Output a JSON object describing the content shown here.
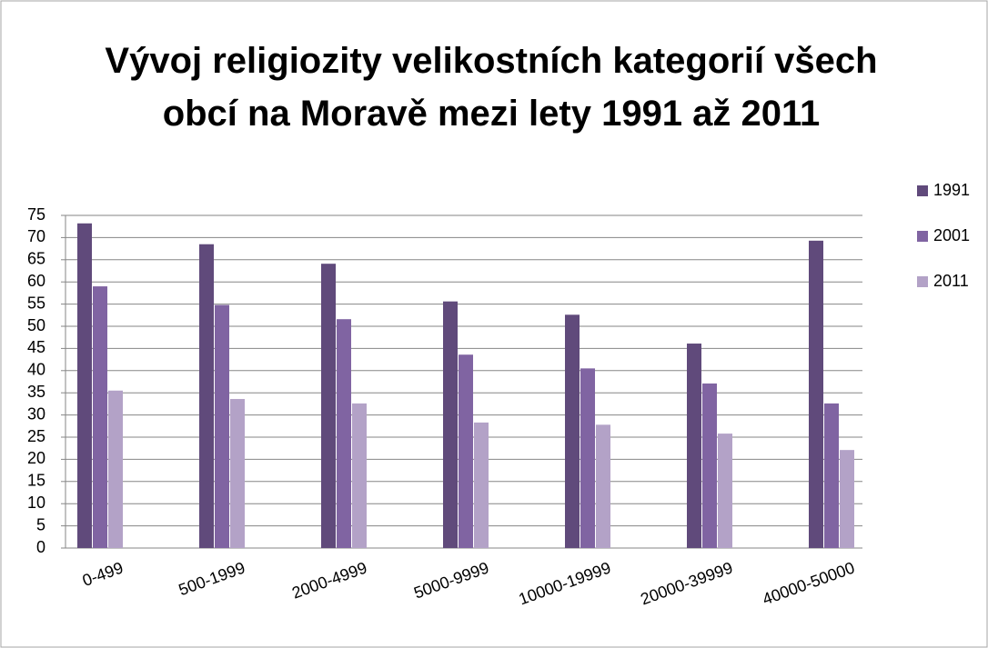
{
  "chart_data": {
    "type": "bar",
    "title": "Vývoj religiozity velikostních kategorií všech obcí na Moravě mezi lety 1991 až 2011",
    "categories": [
      "0-499",
      "500-1999",
      "2000-4999",
      "5000-9999",
      "10000-19999",
      "20000-39999",
      "40000-50000"
    ],
    "series": [
      {
        "name": "1991",
        "color": "#604a7b",
        "values": [
          73.2,
          68.5,
          64.1,
          55.6,
          52.6,
          46.1,
          69.3
        ]
      },
      {
        "name": "2001",
        "color": "#8064a2",
        "values": [
          59,
          54.8,
          51.6,
          43.6,
          40.5,
          37.1,
          32.6
        ]
      },
      {
        "name": "2011",
        "color": "#b3a2c7",
        "values": [
          35.5,
          33.6,
          32.6,
          28.3,
          27.8,
          25.8,
          22.1
        ]
      }
    ],
    "ylim": [
      0,
      75
    ],
    "yticks": [
      0,
      5,
      10,
      15,
      20,
      25,
      30,
      35,
      40,
      45,
      50,
      55,
      60,
      65,
      70,
      75
    ],
    "grid": true,
    "legend": "right"
  }
}
